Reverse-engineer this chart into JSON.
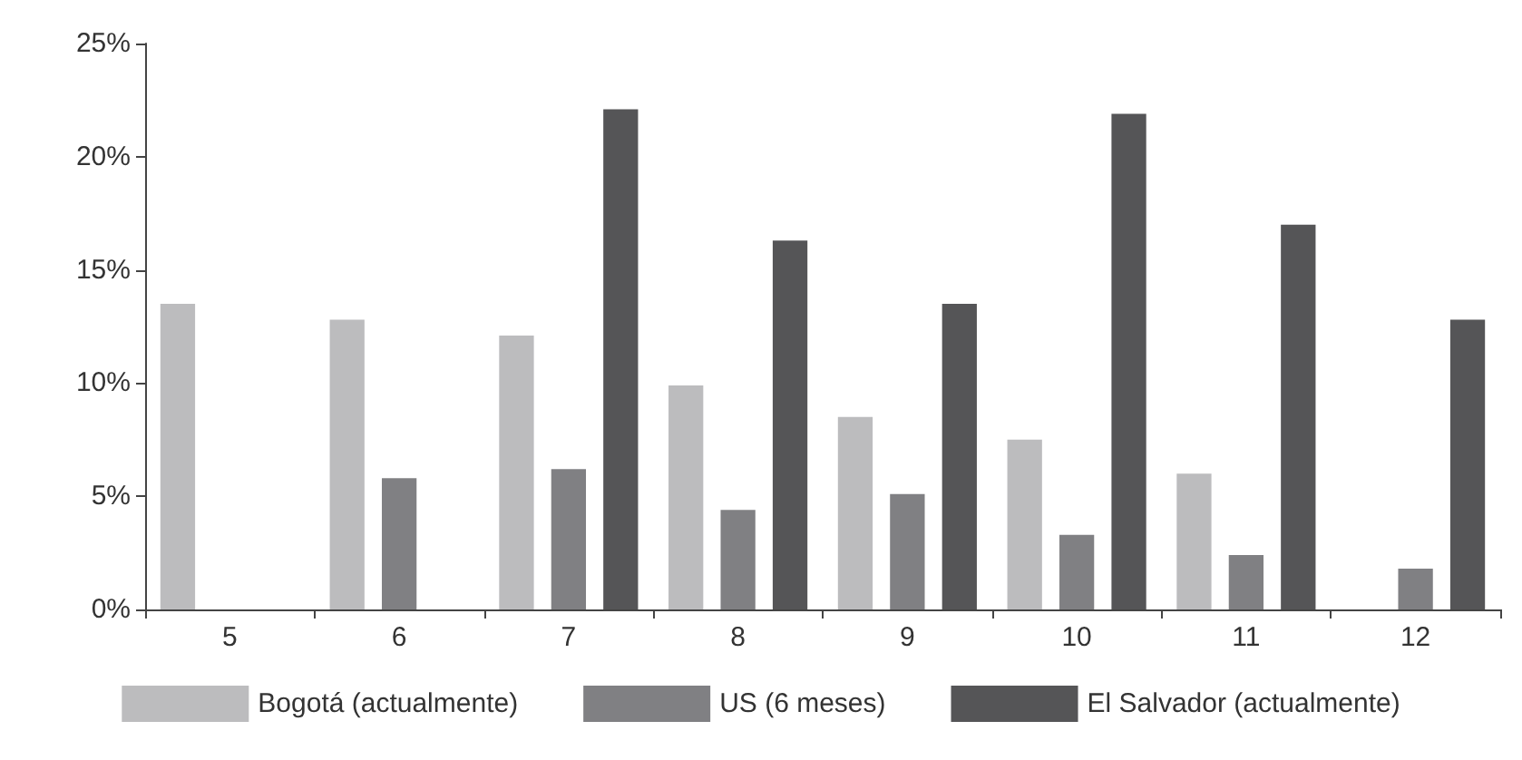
{
  "chart_data": {
    "type": "bar",
    "categories": [
      "5",
      "6",
      "7",
      "8",
      "9",
      "10",
      "11",
      "12"
    ],
    "series": [
      {
        "name": "Bogotá (actualmente)",
        "color": "#bcbcbe",
        "values": [
          13.5,
          12.8,
          12.1,
          9.9,
          8.5,
          7.5,
          6.0,
          null
        ]
      },
      {
        "name": "US (6 meses)",
        "color": "#808083",
        "values": [
          null,
          5.8,
          6.2,
          4.4,
          5.1,
          3.3,
          2.4,
          1.8
        ]
      },
      {
        "name": "El Salvador (actualmente)",
        "color": "#555557",
        "values": [
          null,
          null,
          22.1,
          16.3,
          13.5,
          21.9,
          17.0,
          12.8
        ]
      }
    ],
    "ylim": [
      0,
      25
    ],
    "yticks": [
      {
        "value": 0,
        "label": "0%"
      },
      {
        "value": 5,
        "label": "5%"
      },
      {
        "value": 10,
        "label": "10%"
      },
      {
        "value": 15,
        "label": "15%"
      },
      {
        "value": 20,
        "label": "20%"
      },
      {
        "value": 25,
        "label": "25%"
      }
    ],
    "grid": false,
    "legend": "bottom"
  }
}
